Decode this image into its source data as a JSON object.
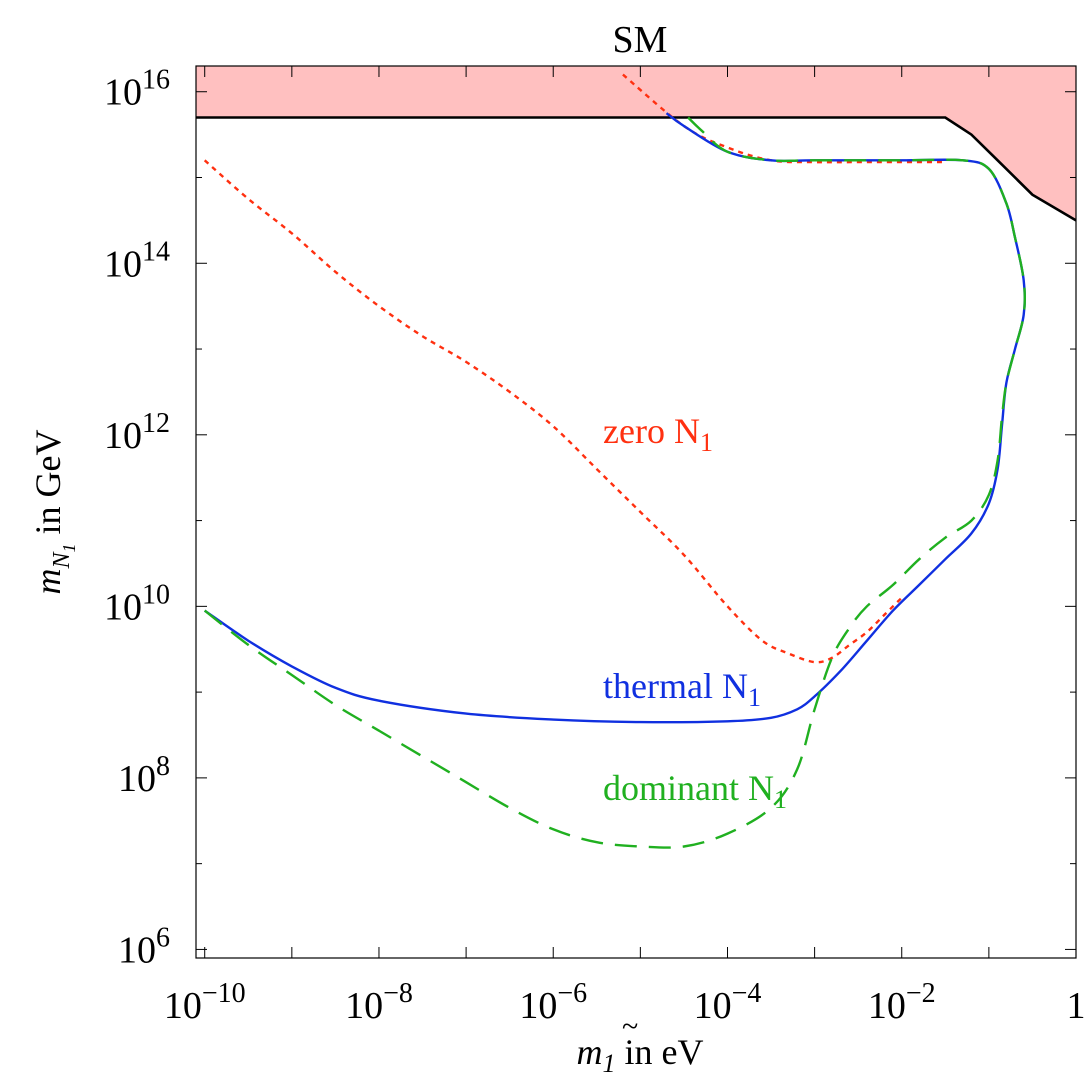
{
  "chart_data": {
    "type": "line",
    "title": "SM",
    "xlabel": {
      "base": "m",
      "sub": "1",
      "suffix": " in eV"
    },
    "ylabel": {
      "base": "m",
      "sub_base": "N",
      "sub_sub": "1",
      "suffix": "  in GeV"
    },
    "x_scale": "log",
    "y_scale": "log",
    "xlim_exp": [
      -10.1,
      0
    ],
    "ylim_exp": [
      5.9,
      16.3
    ],
    "x_ticks": [
      {
        "exp": -10,
        "label_base": "10",
        "label_exp": "−10"
      },
      {
        "exp": -8,
        "label_base": "10",
        "label_exp": "−8"
      },
      {
        "exp": -6,
        "label_base": "10",
        "label_exp": "−6"
      },
      {
        "exp": -4,
        "label_base": "10",
        "label_exp": "−4"
      },
      {
        "exp": -2,
        "label_base": "10",
        "label_exp": "−2"
      },
      {
        "exp": 0,
        "label_base": "1",
        "label_exp": ""
      }
    ],
    "y_ticks": [
      {
        "exp": 6,
        "label_base": "10",
        "label_exp": "6"
      },
      {
        "exp": 8,
        "label_base": "10",
        "label_exp": "8"
      },
      {
        "exp": 10,
        "label_base": "10",
        "label_exp": "10"
      },
      {
        "exp": 12,
        "label_base": "10",
        "label_exp": "12"
      },
      {
        "exp": 14,
        "label_base": "10",
        "label_exp": "14"
      },
      {
        "exp": 16,
        "label_base": "10",
        "label_exp": "16"
      }
    ],
    "excluded_region": {
      "color": "#ffc0c0",
      "top_exp": 16.3,
      "boundary": [
        [
          -10.1,
          15.7
        ],
        [
          -1.5,
          15.7
        ],
        [
          -1.2,
          15.5
        ],
        [
          -0.9,
          15.2
        ],
        [
          -0.5,
          14.8
        ],
        [
          0,
          14.5
        ]
      ]
    },
    "series": [
      {
        "name": "zero N",
        "name_sub": "1",
        "color": "#ff3010",
        "dash": "short",
        "points": [
          [
            -10,
            15.2
          ],
          [
            -9.5,
            14.75
          ],
          [
            -9,
            14.35
          ],
          [
            -8.5,
            13.9
          ],
          [
            -8,
            13.5
          ],
          [
            -7.5,
            13.15
          ],
          [
            -7,
            12.85
          ],
          [
            -6.5,
            12.5
          ],
          [
            -6,
            12.1
          ],
          [
            -5.5,
            11.6
          ],
          [
            -5,
            11.1
          ],
          [
            -4.5,
            10.6
          ],
          [
            -4,
            10.0
          ],
          [
            -3.6,
            9.6
          ],
          [
            -3.3,
            9.45
          ],
          [
            -3.0,
            9.35
          ],
          [
            -2.8,
            9.4
          ],
          [
            -2.6,
            9.55
          ],
          [
            -2.4,
            9.7
          ],
          [
            -2.2,
            9.9
          ],
          [
            -2.0,
            10.1
          ]
        ],
        "upper_branch": [
          [
            -5.2,
            16.2
          ],
          [
            -4.5,
            15.6
          ],
          [
            -4.0,
            15.35
          ],
          [
            -3.5,
            15.2
          ],
          [
            -3.0,
            15.18
          ],
          [
            -2.5,
            15.18
          ],
          [
            -1.5,
            15.18
          ]
        ]
      },
      {
        "name": "thermal N",
        "name_sub": "1",
        "color": "#1030e0",
        "dash": "solid",
        "points": [
          [
            -10,
            9.95
          ],
          [
            -9.5,
            9.6
          ],
          [
            -9,
            9.3
          ],
          [
            -8.5,
            9.05
          ],
          [
            -8,
            8.9
          ],
          [
            -7,
            8.75
          ],
          [
            -6,
            8.68
          ],
          [
            -5,
            8.65
          ],
          [
            -4,
            8.66
          ],
          [
            -3.5,
            8.7
          ],
          [
            -3.2,
            8.8
          ],
          [
            -3.0,
            8.95
          ],
          [
            -2.7,
            9.25
          ],
          [
            -2.4,
            9.6
          ],
          [
            -2.1,
            9.95
          ],
          [
            -1.8,
            10.25
          ],
          [
            -1.5,
            10.55
          ],
          [
            -1.2,
            10.85
          ],
          [
            -1.0,
            11.2
          ],
          [
            -0.9,
            11.6
          ],
          [
            -0.85,
            12.1
          ],
          [
            -0.8,
            12.6
          ],
          [
            -0.7,
            13.0
          ],
          [
            -0.6,
            13.4
          ],
          [
            -0.6,
            13.8
          ],
          [
            -0.7,
            14.3
          ],
          [
            -0.8,
            14.7
          ],
          [
            -1.0,
            15.1
          ],
          [
            -1.3,
            15.2
          ],
          [
            -2.0,
            15.2
          ],
          [
            -3.0,
            15.2
          ],
          [
            -3.5,
            15.2
          ],
          [
            -4.0,
            15.3
          ],
          [
            -4.5,
            15.6
          ],
          [
            -4.7,
            15.75
          ]
        ]
      },
      {
        "name": "dominant N",
        "name_sub": "1",
        "color": "#20b020",
        "dash": "long",
        "points": [
          [
            -10,
            9.95
          ],
          [
            -9.5,
            9.55
          ],
          [
            -9,
            9.2
          ],
          [
            -8.5,
            8.85
          ],
          [
            -8,
            8.55
          ],
          [
            -7.5,
            8.25
          ],
          [
            -7,
            7.95
          ],
          [
            -6.5,
            7.65
          ],
          [
            -6,
            7.4
          ],
          [
            -5.5,
            7.25
          ],
          [
            -5,
            7.2
          ],
          [
            -4.5,
            7.2
          ],
          [
            -4,
            7.35
          ],
          [
            -3.5,
            7.65
          ],
          [
            -3.2,
            8.1
          ],
          [
            -3.0,
            8.8
          ],
          [
            -2.8,
            9.4
          ],
          [
            -2.6,
            9.75
          ],
          [
            -2.4,
            10.0
          ],
          [
            -2.1,
            10.25
          ],
          [
            -1.8,
            10.55
          ],
          [
            -1.5,
            10.8
          ],
          [
            -1.2,
            11.0
          ],
          [
            -1.0,
            11.3
          ],
          [
            -0.9,
            11.7
          ],
          [
            -0.85,
            12.2
          ],
          [
            -0.8,
            12.6
          ],
          [
            -0.7,
            13.0
          ],
          [
            -0.6,
            13.4
          ],
          [
            -0.6,
            13.8
          ],
          [
            -0.7,
            14.3
          ],
          [
            -0.8,
            14.7
          ],
          [
            -1.0,
            15.1
          ],
          [
            -1.3,
            15.2
          ],
          [
            -2.0,
            15.2
          ],
          [
            -3.0,
            15.2
          ],
          [
            -3.5,
            15.2
          ],
          [
            -4.0,
            15.3
          ],
          [
            -4.3,
            15.55
          ],
          [
            -4.5,
            15.75
          ]
        ]
      }
    ],
    "boundary_line_color": "#000000"
  }
}
